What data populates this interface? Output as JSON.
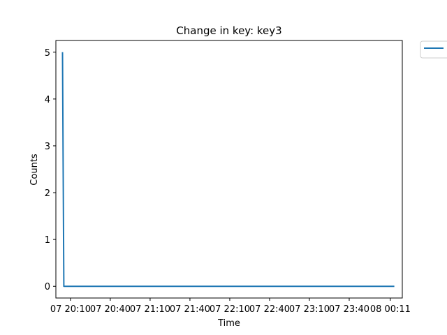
{
  "chart_data": {
    "type": "line",
    "title": "Change in key: key3",
    "xlabel": "Time",
    "ylabel": "Counts",
    "x_tick_labels": [
      "07 20:10",
      "07 20:40",
      "07 21:10",
      "07 21:40",
      "07 22:10",
      "07 22:40",
      "07 23:10",
      "07 23:40",
      "08 00:11"
    ],
    "y_tick_labels": [
      "0",
      "1",
      "2",
      "3",
      "4",
      "5"
    ],
    "ylim": [
      -0.25,
      5.25
    ],
    "xlim": [
      "07 19:59",
      "08 00:20"
    ],
    "grid": false,
    "legend_placement": "outside-top-right",
    "series": [
      {
        "color": "#1f77b4",
        "points": [
          {
            "x": "07 20:04",
            "y": 5
          },
          {
            "x": "07 20:05",
            "y": 0
          },
          {
            "x": "08 00:14",
            "y": 0
          }
        ]
      }
    ]
  }
}
